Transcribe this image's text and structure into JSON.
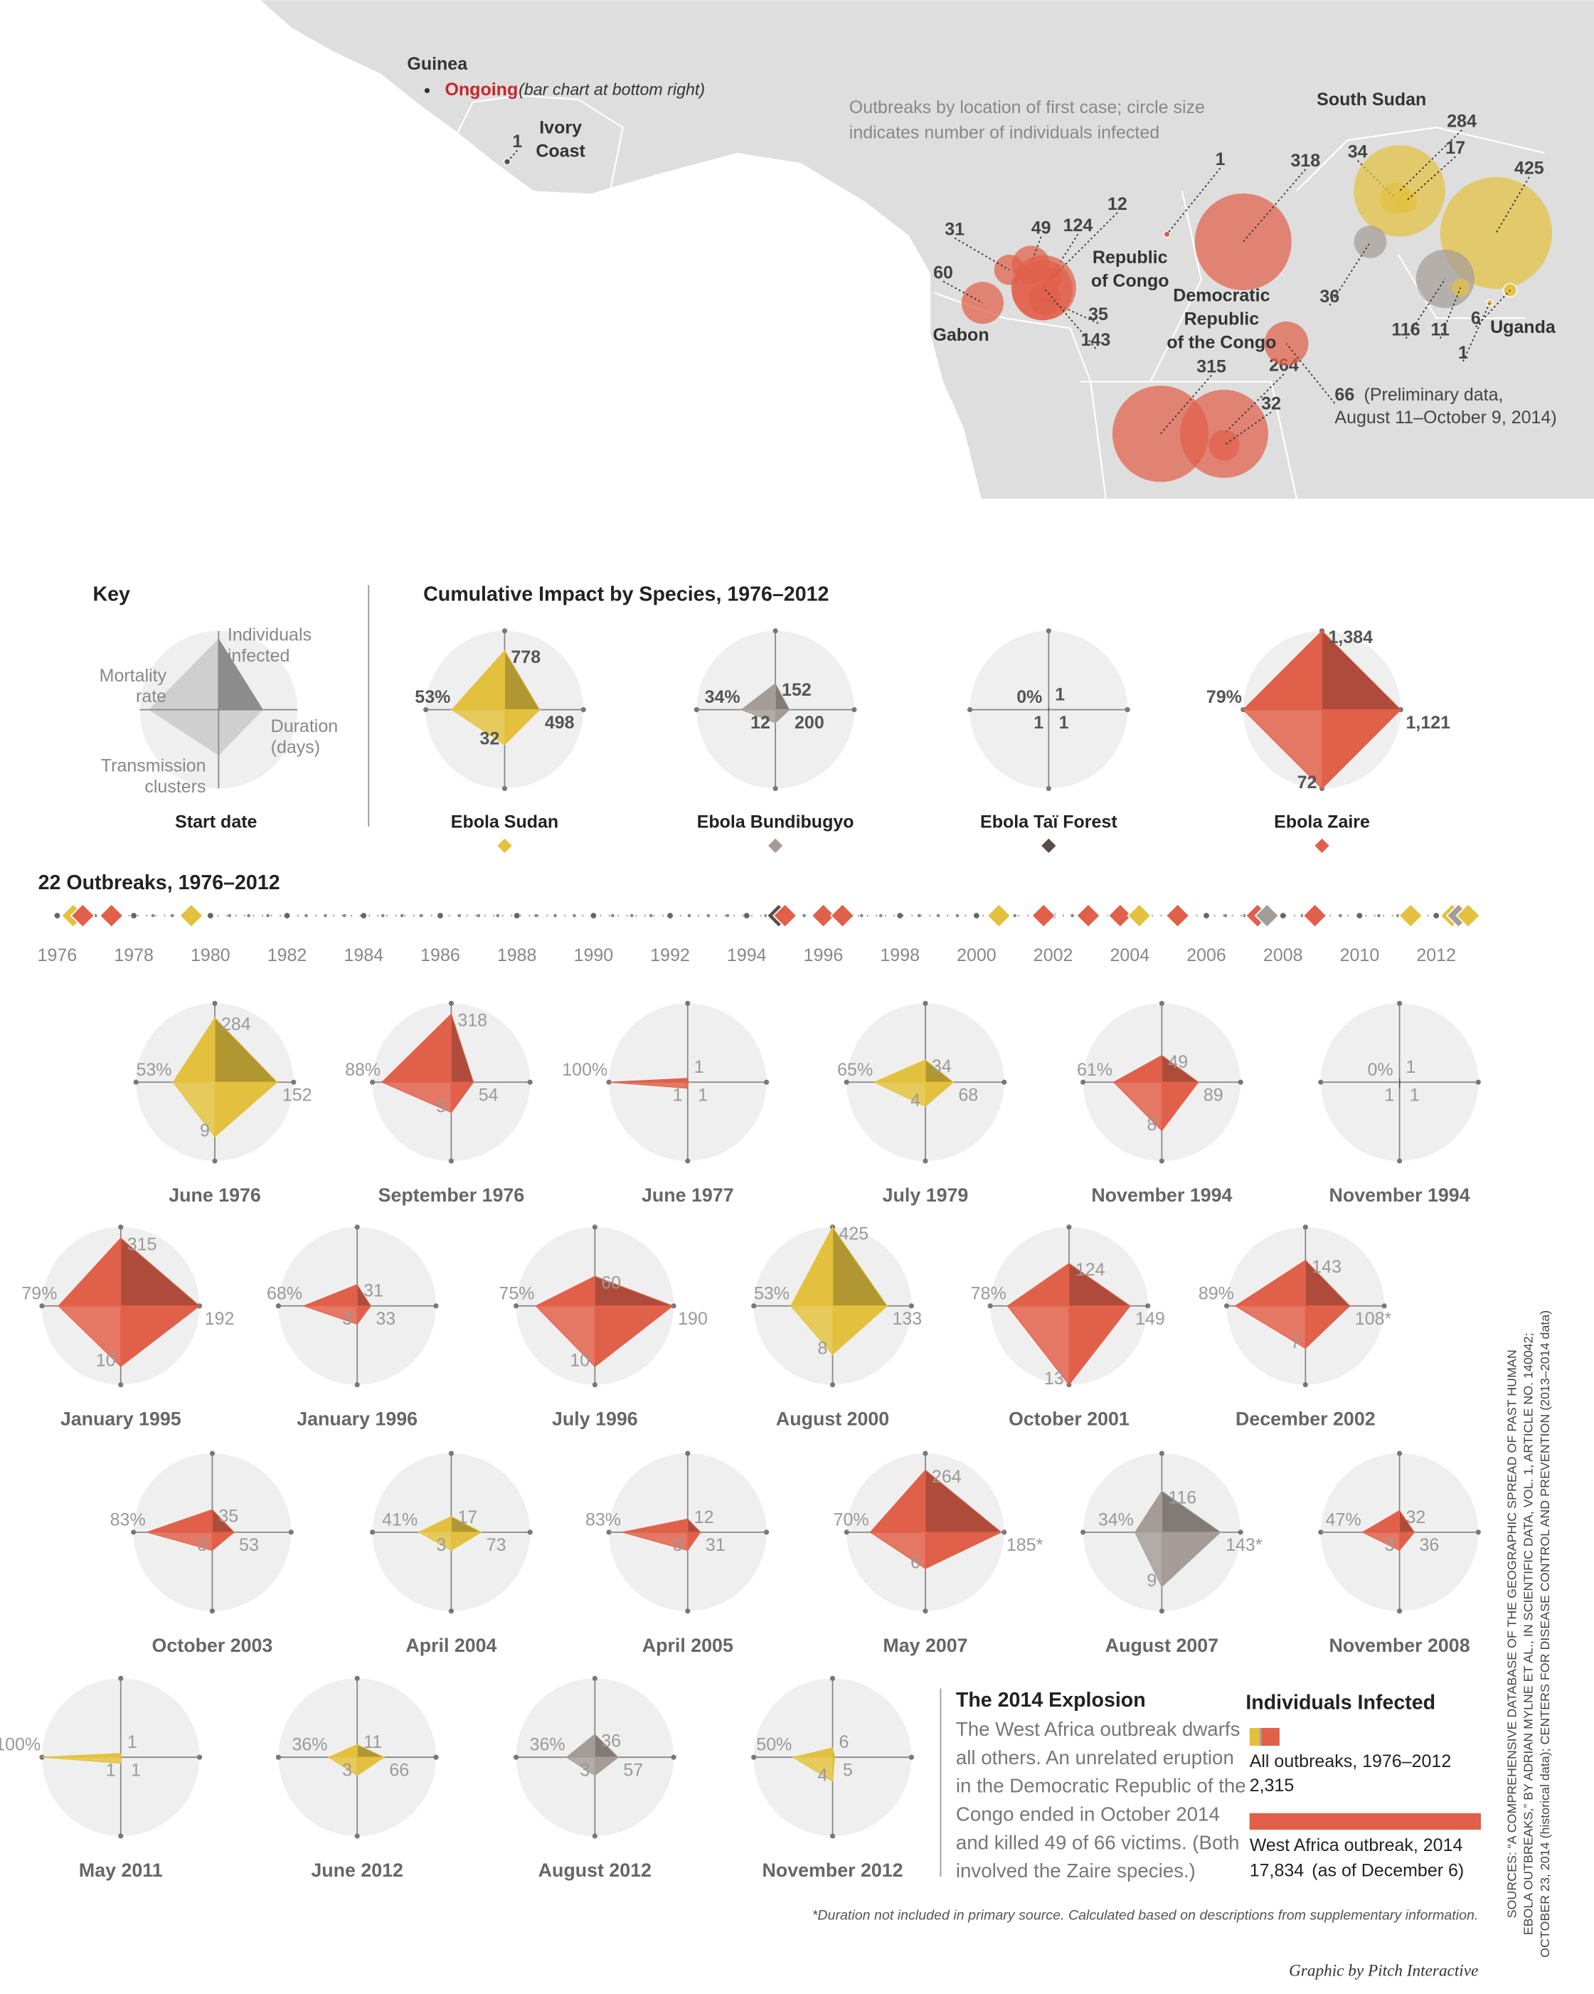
{
  "map": {
    "caption": [
      "Outbreaks by location of first case; circle size",
      "indicates number of individuals infected"
    ],
    "guinea": "Guinea",
    "ongoing": "Ongoing",
    "ongoing_note": "(bar chart at bottom right)",
    "countries": [
      {
        "lines": [
          "Ivory",
          "Coast"
        ]
      },
      {
        "lines": [
          "South Sudan"
        ]
      },
      {
        "lines": [
          "Republic",
          "of Congo"
        ]
      },
      {
        "lines": [
          "Gabon"
        ]
      },
      {
        "lines": [
          "Democratic",
          "Republic",
          "of the Congo"
        ]
      },
      {
        "lines": [
          "Uganda"
        ]
      }
    ],
    "circles": [
      {
        "value": 1,
        "color": "#5b4b4b"
      },
      {
        "value": 1,
        "color": "#e0604a"
      },
      {
        "value": 318,
        "color": "#e0604a"
      },
      {
        "value": 34,
        "color": "#e3c13f"
      },
      {
        "value": 284,
        "color": "#e3c13f"
      },
      {
        "value": 17,
        "color": "#e3c13f"
      },
      {
        "value": 425,
        "color": "#e3c13f"
      },
      {
        "value": 36,
        "color": "#a59c98"
      },
      {
        "value": 116,
        "color": "#a59c98"
      },
      {
        "value": 11,
        "color": "#e3c13f"
      },
      {
        "value": 6,
        "color": "#e3c13f"
      },
      {
        "value": 1,
        "color": "#e3c13f"
      },
      {
        "value": 31,
        "color": "#e0604a"
      },
      {
        "value": 49,
        "color": "#e0604a"
      },
      {
        "value": 124,
        "color": "#e0604a"
      },
      {
        "value": 12,
        "color": "#e0604a"
      },
      {
        "value": 60,
        "color": "#e0604a"
      },
      {
        "value": 35,
        "color": "#e0604a"
      },
      {
        "value": 143,
        "color": "#e0604a"
      },
      {
        "value": 315,
        "color": "#e0604a"
      },
      {
        "value": 264,
        "color": "#e0604a"
      },
      {
        "value": 32,
        "color": "#e0604a"
      },
      {
        "value": 66,
        "color": "#e0604a"
      }
    ],
    "preliminary_note": [
      "(Preliminary data,",
      "August 11–October 9, 2014)"
    ]
  },
  "key": {
    "title": "Key",
    "infected": [
      "Individuals",
      "infected"
    ],
    "mortality": [
      "Mortality",
      "rate"
    ],
    "duration": [
      "Duration",
      "(days)"
    ],
    "clusters": [
      "Transmission",
      "clusters"
    ],
    "start": "Start date"
  },
  "species_title": "Cumulative Impact by Species, 1976–2012",
  "species": [
    {
      "name": "Ebola Sudan",
      "color": "#e3c13f",
      "infected": 778,
      "duration": 498,
      "clusters": 32,
      "mortality": 53,
      "mortality_label": "53%"
    },
    {
      "name": "Ebola Bundibugyo",
      "color": "#a59c98",
      "infected": 152,
      "duration": 200,
      "clusters": 12,
      "mortality": 34,
      "mortality_label": "34%"
    },
    {
      "name": "Ebola Taï Forest",
      "color": "#5b4b4b",
      "infected": 1,
      "duration": 1,
      "clusters": 1,
      "mortality": 0,
      "mortality_label": "0%"
    },
    {
      "name": "Ebola Zaire",
      "color": "#e0604a",
      "infected": 1384,
      "infected_label": "1,384",
      "duration": 1121,
      "duration_label": "1,121",
      "clusters": 72,
      "mortality": 79,
      "mortality_label": "79%"
    }
  ],
  "timeline": {
    "title": "22 Outbreaks, 1976–2012",
    "xlim": [
      1976,
      2013
    ],
    "xticks": [
      1976,
      1978,
      1980,
      1982,
      1984,
      1986,
      1988,
      1990,
      1992,
      1994,
      1996,
      1998,
      2000,
      2002,
      2004,
      2006,
      2008,
      2010,
      2012
    ]
  },
  "outbreaks": [
    {
      "date": "June 1976",
      "color": "#e3c13f",
      "infected": 284,
      "duration": 152,
      "clusters": 9,
      "mortality": 53,
      "mortality_label": "53%"
    },
    {
      "date": "September 1976",
      "color": "#e0604a",
      "infected": 318,
      "duration": 54,
      "clusters": 5,
      "mortality": 88,
      "mortality_label": "88%"
    },
    {
      "date": "June 1977",
      "color": "#e0604a",
      "infected": 1,
      "duration": 1,
      "clusters": 1,
      "mortality": 100,
      "mortality_label": "100%"
    },
    {
      "date": "July 1979",
      "color": "#e3c13f",
      "infected": 34,
      "duration": 68,
      "clusters": 4,
      "mortality": 65,
      "mortality_label": "65%"
    },
    {
      "date": "November 1994",
      "color": "#e0604a",
      "infected": 49,
      "duration": 89,
      "clusters": 8,
      "mortality": 61,
      "mortality_label": "61%"
    },
    {
      "date": "November 1994",
      "color": "#5b4b4b",
      "infected": 1,
      "duration": 1,
      "clusters": 1,
      "mortality": 0,
      "mortality_label": "0%"
    },
    {
      "date": "January 1995",
      "color": "#e0604a",
      "infected": 315,
      "duration": 192,
      "clusters": 10,
      "mortality": 79,
      "mortality_label": "79%"
    },
    {
      "date": "January 1996",
      "color": "#e0604a",
      "infected": 31,
      "duration": 33,
      "clusters": 3,
      "mortality": 68,
      "mortality_label": "68%"
    },
    {
      "date": "July 1996",
      "color": "#e0604a",
      "infected": 60,
      "duration": 190,
      "clusters": 10,
      "mortality": 75,
      "mortality_label": "75%"
    },
    {
      "date": "August 2000",
      "color": "#e3c13f",
      "infected": 425,
      "duration": 133,
      "clusters": 8,
      "mortality": 53,
      "mortality_label": "53%"
    },
    {
      "date": "October 2001",
      "color": "#e0604a",
      "infected": 124,
      "duration": 149,
      "clusters": 13,
      "mortality": 78,
      "mortality_label": "78%"
    },
    {
      "date": "December 2002",
      "color": "#e0604a",
      "infected": 143,
      "duration": 108,
      "duration_label": "108*",
      "clusters": 7,
      "mortality": 89,
      "mortality_label": "89%"
    },
    {
      "date": "October 2003",
      "color": "#e0604a",
      "infected": 35,
      "duration": 53,
      "clusters": 3,
      "mortality": 83,
      "mortality_label": "83%"
    },
    {
      "date": "April 2004",
      "color": "#e3c13f",
      "infected": 17,
      "duration": 73,
      "clusters": 3,
      "mortality": 41,
      "mortality_label": "41%"
    },
    {
      "date": "April 2005",
      "color": "#e0604a",
      "infected": 12,
      "duration": 31,
      "clusters": 3,
      "mortality": 83,
      "mortality_label": "83%"
    },
    {
      "date": "May 2007",
      "color": "#e0604a",
      "infected": 264,
      "duration": 185,
      "duration_label": "185*",
      "clusters": 6,
      "mortality": 70,
      "mortality_label": "70%"
    },
    {
      "date": "August 2007",
      "color": "#a59c98",
      "infected": 116,
      "duration": 143,
      "duration_label": "143*",
      "clusters": 9,
      "mortality": 34,
      "mortality_label": "34%"
    },
    {
      "date": "November 2008",
      "color": "#e0604a",
      "infected": 32,
      "duration": 36,
      "clusters": 3,
      "mortality": 47,
      "mortality_label": "47%"
    },
    {
      "date": "May 2011",
      "color": "#e3c13f",
      "infected": 1,
      "duration": 1,
      "clusters": 1,
      "mortality": 100,
      "mortality_label": "100%"
    },
    {
      "date": "June 2012",
      "color": "#e3c13f",
      "infected": 11,
      "duration": 66,
      "clusters": 3,
      "mortality": 36,
      "mortality_label": "36%"
    },
    {
      "date": "August 2012",
      "color": "#a59c98",
      "infected": 36,
      "duration": 57,
      "clusters": 3,
      "mortality": 36,
      "mortality_label": "36%"
    },
    {
      "date": "November 2012",
      "color": "#e3c13f",
      "infected": 6,
      "duration": 5,
      "clusters": 4,
      "mortality": 50,
      "mortality_label": "50%"
    }
  ],
  "explosion": {
    "title": "The 2014 Explosion",
    "lines": [
      "The West Africa outbreak dwarfs",
      "all others. An unrelated eruption",
      "in the Democratic Republic of the",
      "Congo ended in October 2014",
      "and killed 49 of 66 victims. (Both",
      "involved the Zaire species.)"
    ]
  },
  "infected_legend": {
    "title": "Individuals Infected",
    "all_label": "All outbreaks, 1976–2012",
    "all_value": 2315,
    "all_value_label": "2,315",
    "west_label": "West Africa outbreak, 2014",
    "west_value": 17834,
    "west_value_label": "17,834",
    "west_note": "(as of December 6)",
    "west_color": "#e0604a"
  },
  "footnote": "*Duration not included in primary source. Calculated based on descriptions from supplementary information.",
  "credit": "Graphic by Pitch Interactive",
  "sources": [
    "SOURCES: “A COMPREHENSIVE DATABASE OF THE GEOGRAPHIC SPREAD OF PAST HUMAN",
    "EBOLA OUTBREAKS,” BY ADRIAN MYLNE ET AL., IN SCIENTIFIC DATA, VOL. 1, ARTICLE NO. 140042;",
    "OCTOBER 23, 2014 (historical data); CENTERS FOR DISEASE CONTROL AND PREVENTION (2013–2014 data)"
  ]
}
